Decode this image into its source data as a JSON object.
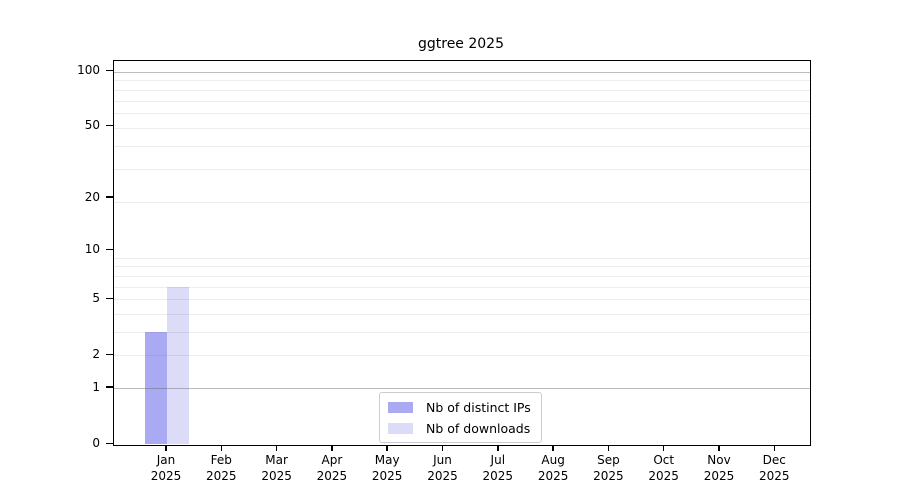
{
  "chart_data": {
    "type": "bar",
    "title": "ggtree 2025",
    "x_categories_line1": [
      "Jan",
      "Feb",
      "Mar",
      "Apr",
      "May",
      "Jun",
      "Jul",
      "Aug",
      "Sep",
      "Oct",
      "Nov",
      "Dec"
    ],
    "x_categories_line2": "2025",
    "series": [
      {
        "name": "Nb of distinct IPs",
        "color": "#aaaaf2",
        "values": [
          3,
          0,
          0,
          0,
          0,
          0,
          0,
          0,
          0,
          0,
          0,
          0
        ]
      },
      {
        "name": "Nb of downloads",
        "color": "#dcdcf8",
        "values": [
          6,
          0,
          0,
          0,
          0,
          0,
          0,
          0,
          0,
          0,
          0,
          0
        ]
      }
    ],
    "y_scale": "log1p",
    "y_ticks": [
      0,
      1,
      2,
      5,
      10,
      20,
      50,
      100
    ],
    "y_lim": [
      0,
      105
    ],
    "gridline_values": [
      1,
      2,
      3,
      4,
      5,
      6,
      7,
      8,
      9,
      19,
      29,
      39,
      49,
      59,
      69,
      79,
      89,
      99
    ],
    "emphasized_gridlines": [
      1,
      99
    ],
    "grid_on": true,
    "legend_position": "inside-bottom-center",
    "colors": {
      "axis": "#000000",
      "grid": "#e9e9e9",
      "grid_emphasis": "#c8c8c8",
      "legend_border": "#cccccc",
      "background": "#ffffff",
      "text": "#000000"
    }
  }
}
